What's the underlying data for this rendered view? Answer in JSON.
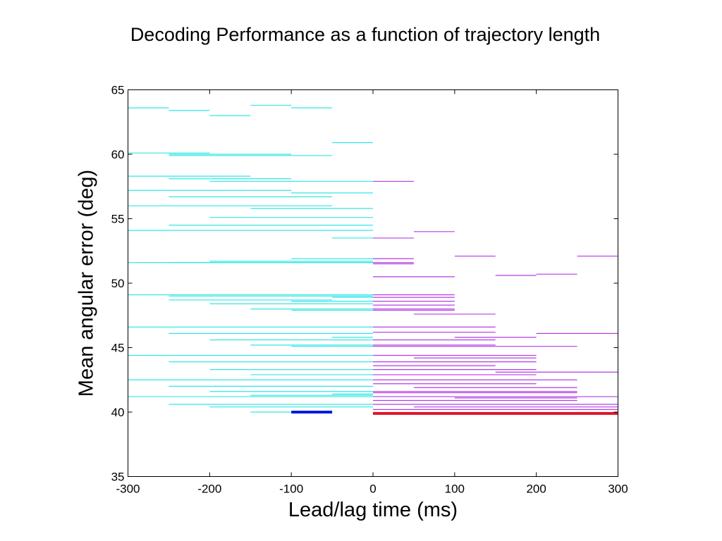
{
  "chart_data": {
    "type": "line",
    "title": "Decoding Performance as a function of trajectory length",
    "xlabel": "Lead/lag time (ms)",
    "ylabel": "Mean angular error (deg)",
    "xlim": [
      -300,
      300
    ],
    "ylim": [
      35,
      65
    ],
    "xticks": [
      -300,
      -200,
      -100,
      0,
      100,
      200,
      300
    ],
    "yticks": [
      35,
      40,
      45,
      50,
      55,
      60,
      65
    ],
    "grid": false,
    "colors": {
      "lead": "#33e6e6",
      "lag": "#b43ce6",
      "best_lead": "#0a1adc",
      "best_lag": "#dc1428"
    },
    "series": [
      {
        "segment_color": "lead",
        "segments": [
          {
            "x": [
              -300,
              -250
            ],
            "y": 63.6
          },
          {
            "x": [
              -250,
              -200
            ],
            "y": 63.4
          },
          {
            "x": [
              -200,
              -150
            ],
            "y": 63.0
          },
          {
            "x": [
              -150,
              -100
            ],
            "y": 63.8
          },
          {
            "x": [
              -100,
              -50
            ],
            "y": 63.6
          },
          {
            "x": [
              -50,
              0
            ],
            "y": 60.9
          },
          {
            "x": [
              -300,
              -200
            ],
            "y": 60.1
          },
          {
            "x": [
              -250,
              -50
            ],
            "y": 59.9
          },
          {
            "x": [
              -250,
              -100
            ],
            "y": 60.0
          },
          {
            "x": [
              -300,
              -150
            ],
            "y": 58.3
          },
          {
            "x": [
              -250,
              -100
            ],
            "y": 58.1
          },
          {
            "x": [
              -200,
              0
            ],
            "y": 57.9
          },
          {
            "x": [
              -300,
              -100
            ],
            "y": 57.2
          },
          {
            "x": [
              -100,
              0
            ],
            "y": 57.0
          },
          {
            "x": [
              -250,
              -50
            ],
            "y": 56.7
          },
          {
            "x": [
              -300,
              -50
            ],
            "y": 56.0
          },
          {
            "x": [
              -150,
              0
            ],
            "y": 55.8
          },
          {
            "x": [
              -200,
              0
            ],
            "y": 55.1
          },
          {
            "x": [
              -250,
              0
            ],
            "y": 54.5
          },
          {
            "x": [
              -300,
              0
            ],
            "y": 54.1
          },
          {
            "x": [
              -50,
              0
            ],
            "y": 53.5
          },
          {
            "x": [
              -100,
              0
            ],
            "y": 51.9
          },
          {
            "x": [
              -300,
              0
            ],
            "y": 51.6
          },
          {
            "x": [
              -250,
              0
            ],
            "y": 51.6
          },
          {
            "x": [
              -200,
              0
            ],
            "y": 51.7
          },
          {
            "x": [
              -300,
              0
            ],
            "y": 49.1
          },
          {
            "x": [
              -250,
              0
            ],
            "y": 49.0
          },
          {
            "x": [
              -50,
              0
            ],
            "y": 48.9
          },
          {
            "x": [
              -250,
              -50
            ],
            "y": 48.7
          },
          {
            "x": [
              -100,
              0
            ],
            "y": 48.6
          },
          {
            "x": [
              -200,
              0
            ],
            "y": 48.4
          },
          {
            "x": [
              -150,
              0
            ],
            "y": 48.0
          },
          {
            "x": [
              -100,
              0
            ],
            "y": 47.9
          },
          {
            "x": [
              -300,
              0
            ],
            "y": 46.6
          },
          {
            "x": [
              -250,
              0
            ],
            "y": 46.1
          },
          {
            "x": [
              -50,
              0
            ],
            "y": 45.8
          },
          {
            "x": [
              -200,
              0
            ],
            "y": 45.6
          },
          {
            "x": [
              -150,
              0
            ],
            "y": 45.2
          },
          {
            "x": [
              -100,
              0
            ],
            "y": 45.1
          },
          {
            "x": [
              -300,
              0
            ],
            "y": 44.4
          },
          {
            "x": [
              -250,
              0
            ],
            "y": 43.9
          },
          {
            "x": [
              -200,
              0
            ],
            "y": 43.3
          },
          {
            "x": [
              -150,
              0
            ],
            "y": 42.9
          },
          {
            "x": [
              -300,
              0
            ],
            "y": 42.5
          },
          {
            "x": [
              -250,
              0
            ],
            "y": 42.0
          },
          {
            "x": [
              -200,
              0
            ],
            "y": 41.6
          },
          {
            "x": [
              -50,
              0
            ],
            "y": 41.4
          },
          {
            "x": [
              -150,
              0
            ],
            "y": 41.3
          },
          {
            "x": [
              -300,
              0
            ],
            "y": 41.2
          },
          {
            "x": [
              -250,
              0
            ],
            "y": 40.6
          },
          {
            "x": [
              -200,
              0
            ],
            "y": 40.4
          },
          {
            "x": [
              -150,
              -50
            ],
            "y": 40.0
          }
        ]
      },
      {
        "segment_color": "lag",
        "segments": [
          {
            "x": [
              0,
              50
            ],
            "y": 57.9
          },
          {
            "x": [
              0,
              50
            ],
            "y": 53.5
          },
          {
            "x": [
              50,
              100
            ],
            "y": 54.0
          },
          {
            "x": [
              0,
              50
            ],
            "y": 51.9
          },
          {
            "x": [
              0,
              50
            ],
            "y": 51.6
          },
          {
            "x": [
              0,
              50
            ],
            "y": 51.5
          },
          {
            "x": [
              100,
              150
            ],
            "y": 52.1
          },
          {
            "x": [
              250,
              300
            ],
            "y": 52.1
          },
          {
            "x": [
              0,
              100
            ],
            "y": 50.5
          },
          {
            "x": [
              150,
              200
            ],
            "y": 50.6
          },
          {
            "x": [
              200,
              250
            ],
            "y": 50.7
          },
          {
            "x": [
              0,
              100
            ],
            "y": 49.1
          },
          {
            "x": [
              0,
              100
            ],
            "y": 48.9
          },
          {
            "x": [
              0,
              100
            ],
            "y": 48.6
          },
          {
            "x": [
              0,
              100
            ],
            "y": 48.3
          },
          {
            "x": [
              0,
              100
            ],
            "y": 48.0
          },
          {
            "x": [
              0,
              100
            ],
            "y": 47.9
          },
          {
            "x": [
              50,
              150
            ],
            "y": 47.6
          },
          {
            "x": [
              0,
              150
            ],
            "y": 46.6
          },
          {
            "x": [
              0,
              150
            ],
            "y": 46.2
          },
          {
            "x": [
              200,
              300
            ],
            "y": 46.1
          },
          {
            "x": [
              100,
              200
            ],
            "y": 45.8
          },
          {
            "x": [
              0,
              150
            ],
            "y": 45.6
          },
          {
            "x": [
              0,
              150
            ],
            "y": 45.2
          },
          {
            "x": [
              0,
              250
            ],
            "y": 45.1
          },
          {
            "x": [
              0,
              200
            ],
            "y": 44.4
          },
          {
            "x": [
              50,
              200
            ],
            "y": 44.2
          },
          {
            "x": [
              0,
              200
            ],
            "y": 43.9
          },
          {
            "x": [
              0,
              150
            ],
            "y": 43.6
          },
          {
            "x": [
              0,
              200
            ],
            "y": 43.3
          },
          {
            "x": [
              150,
              300
            ],
            "y": 43.1
          },
          {
            "x": [
              0,
              200
            ],
            "y": 42.9
          },
          {
            "x": [
              0,
              250
            ],
            "y": 42.5
          },
          {
            "x": [
              0,
              200
            ],
            "y": 42.2
          },
          {
            "x": [
              50,
              250
            ],
            "y": 41.9
          },
          {
            "x": [
              0,
              250
            ],
            "y": 41.6
          },
          {
            "x": [
              0,
              250
            ],
            "y": 41.5
          },
          {
            "x": [
              0,
              300
            ],
            "y": 41.2
          },
          {
            "x": [
              100,
              250
            ],
            "y": 41.1
          },
          {
            "x": [
              0,
              250
            ],
            "y": 40.9
          },
          {
            "x": [
              0,
              300
            ],
            "y": 40.6
          },
          {
            "x": [
              50,
              300
            ],
            "y": 40.4
          },
          {
            "x": [
              0,
              300
            ],
            "y": 40.2
          }
        ]
      },
      {
        "segment_color": "best_lead",
        "thick": true,
        "segments": [
          {
            "x": [
              -100,
              -50
            ],
            "y": 40.0
          }
        ]
      },
      {
        "segment_color": "best_lag",
        "thick": true,
        "segments": [
          {
            "x": [
              0,
              300
            ],
            "y": 39.9
          }
        ]
      }
    ]
  }
}
